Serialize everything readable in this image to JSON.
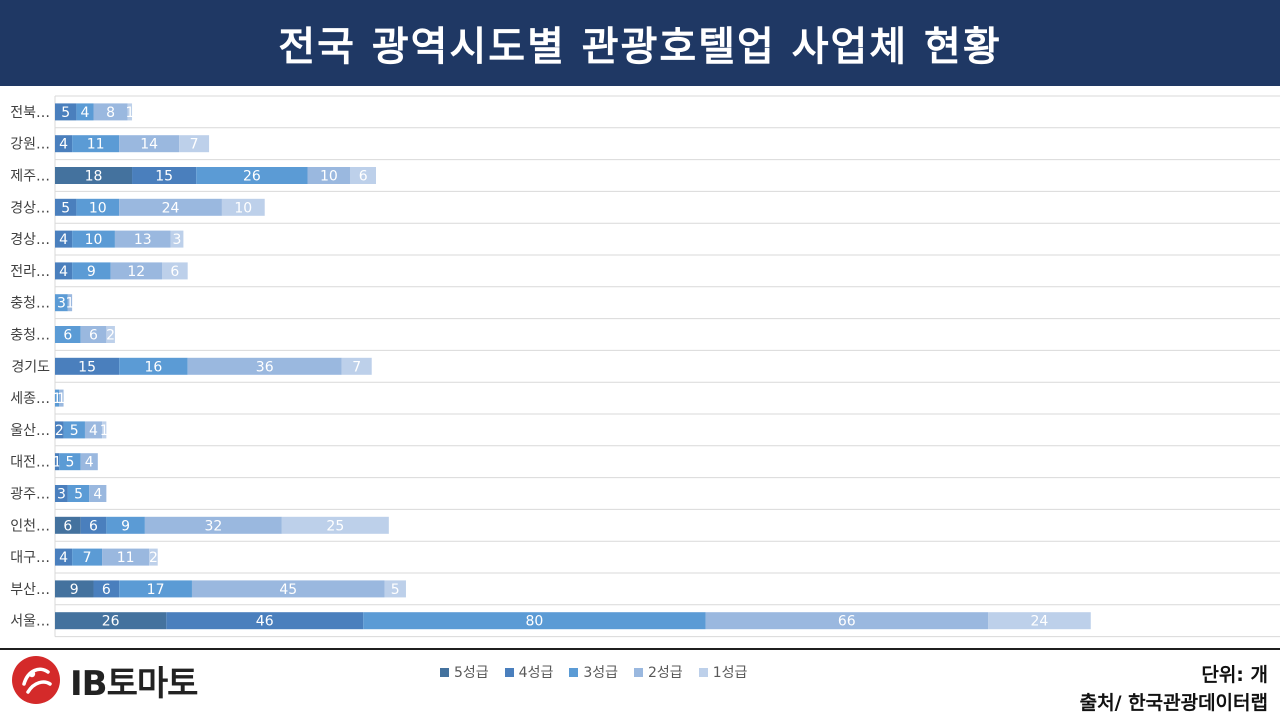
{
  "header": {
    "title": "전국 광역시도별 관광호텔업 사업체 현황"
  },
  "footer": {
    "logo_text": "IB토마토",
    "unit": "단위: 개",
    "source": "출처/ 한국관광데이터랩"
  },
  "colors": {
    "header_bg": "#1f3864",
    "series": [
      "#44729e",
      "#4a7fbd",
      "#5b9bd5",
      "#9ab8df",
      "#bdd0ea"
    ],
    "logo_red": "#d42a2a"
  },
  "chart_data": {
    "type": "bar",
    "orientation": "horizontal",
    "stacked": true,
    "title": "",
    "xlabel": "",
    "ylabel": "",
    "xlim": [
      0,
      250
    ],
    "grid": "horizontal",
    "legend_position": "bottom",
    "categories": [
      "전북…",
      "강원…",
      "제주…",
      "경상…",
      "경상…",
      "전라…",
      "충청…",
      "충청…",
      "경기도",
      "세종…",
      "울산…",
      "대전…",
      "광주…",
      "인천…",
      "대구…",
      "부산…",
      "서울…"
    ],
    "series": [
      {
        "name": "5성급",
        "values": [
          0,
          0,
          18,
          0,
          0,
          0,
          0,
          0,
          0,
          0,
          0,
          0,
          0,
          6,
          0,
          9,
          26
        ]
      },
      {
        "name": "4성급",
        "values": [
          5,
          4,
          15,
          5,
          4,
          4,
          0,
          0,
          15,
          0,
          2,
          1,
          3,
          6,
          4,
          6,
          46
        ]
      },
      {
        "name": "3성급",
        "values": [
          4,
          11,
          26,
          10,
          10,
          9,
          3,
          6,
          16,
          1,
          5,
          5,
          5,
          9,
          7,
          17,
          80
        ]
      },
      {
        "name": "2성급",
        "values": [
          8,
          14,
          10,
          24,
          13,
          12,
          1,
          6,
          36,
          1,
          4,
          4,
          4,
          32,
          11,
          45,
          66
        ]
      },
      {
        "name": "1성급",
        "values": [
          1,
          7,
          6,
          10,
          3,
          6,
          0,
          2,
          7,
          0,
          1,
          0,
          0,
          25,
          2,
          5,
          24
        ]
      }
    ]
  }
}
